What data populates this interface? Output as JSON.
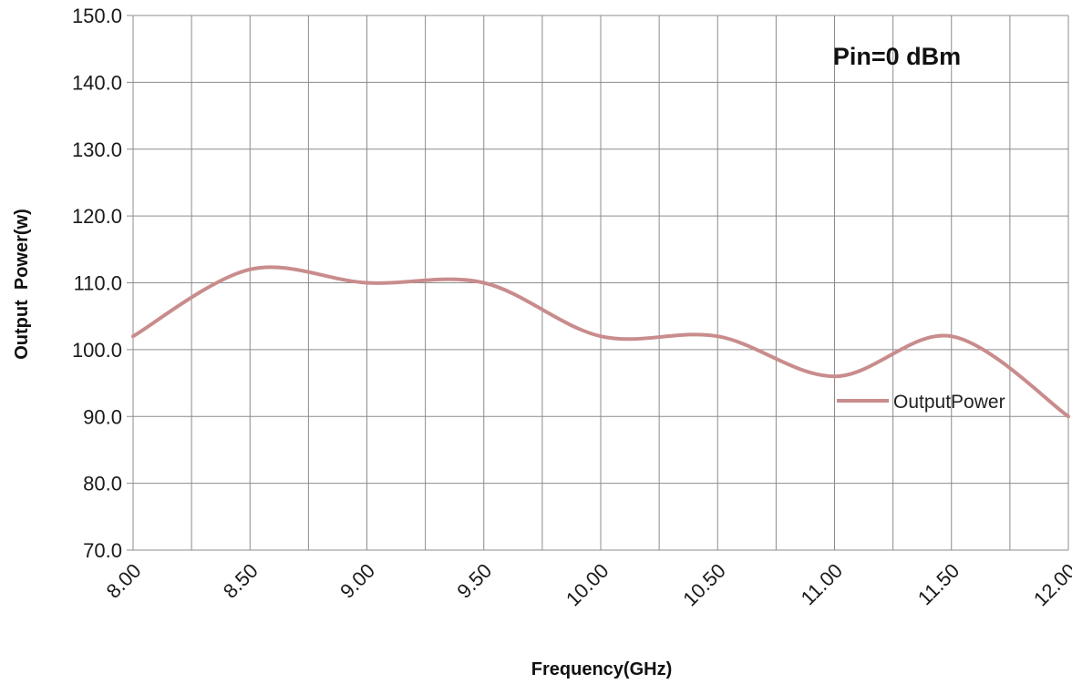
{
  "chart_data": {
    "type": "line",
    "x": [
      8.0,
      8.5,
      9.0,
      9.5,
      10.0,
      10.5,
      11.0,
      11.5,
      12.0
    ],
    "x_tick_labels": [
      "8.00",
      "8.50",
      "9.00",
      "9.50",
      "10.00",
      "10.50",
      "11.00",
      "11.50",
      "12.00"
    ],
    "series": [
      {
        "name": "OutputPower",
        "values": [
          102.0,
          112.0,
          110.0,
          110.0,
          102.0,
          102.0,
          96.0,
          102.0,
          90.0
        ],
        "color": "#c98c8c"
      }
    ],
    "xlabel": "Frequency(GHz)",
    "ylabel": "Output  Power(w)",
    "ylim": [
      70.0,
      150.0
    ],
    "y_tick_labels": [
      "70.0",
      "80.0",
      "90.0",
      "100.0",
      "110.0",
      "120.0",
      "130.0",
      "140.0",
      "150.0"
    ],
    "annotation": "Pin=0 dBm",
    "legend_position": "right",
    "grid": true,
    "smooth": true
  }
}
